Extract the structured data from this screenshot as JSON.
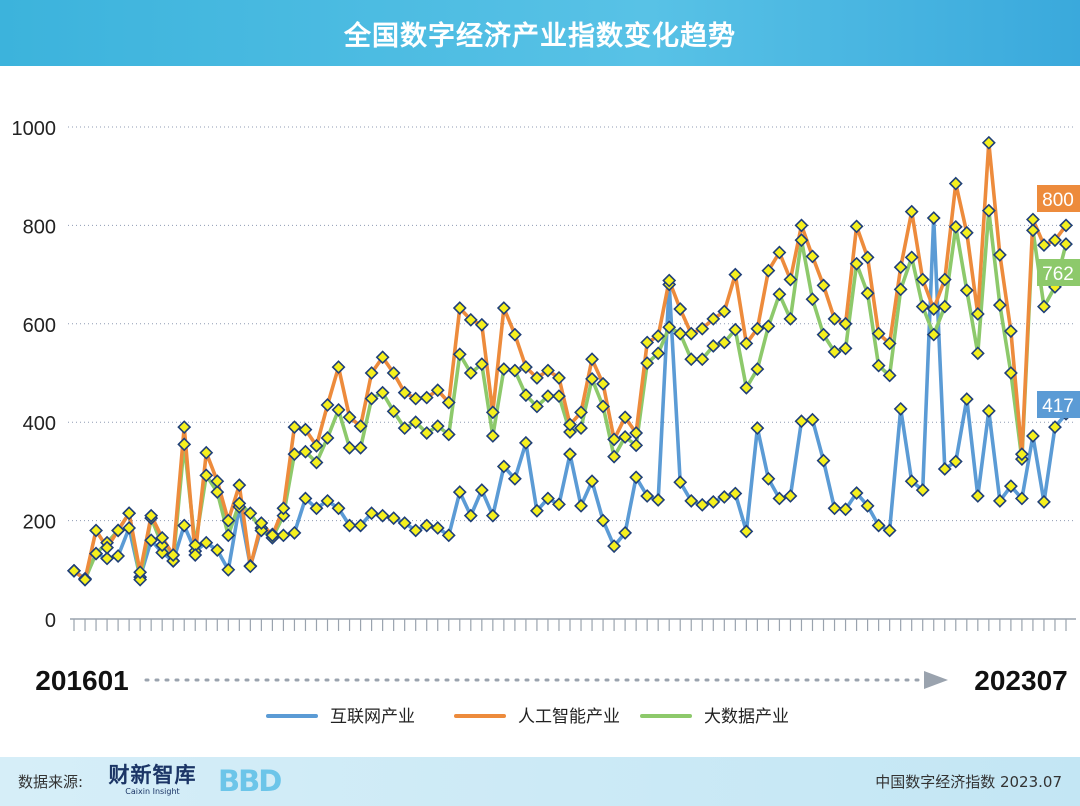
{
  "header": {
    "title": "全国数字经济产业指数变化趋势"
  },
  "footer": {
    "source_label": "数据来源:",
    "logo_main": "财新智库",
    "logo_sub": "Caixin Insight",
    "logo_bbd": "BBD",
    "right_text": "中国数字经济指数 2023.07"
  },
  "colors": {
    "internet": "#5b9bd5",
    "ai": "#ed8b3c",
    "bigdata": "#8dc96b",
    "marker_fill": "#f5f01e",
    "marker_stroke": "#1f3f78",
    "banner": "#3cb3dc"
  },
  "chart_data": {
    "type": "line",
    "title": "全国数字经济产业指数变化趋势",
    "x_start_label": "201601",
    "x_end_label": "202307",
    "ylim": [
      0,
      1000
    ],
    "yticks": [
      "0",
      "200",
      "400",
      "600",
      "800",
      "1000"
    ],
    "grid": true,
    "legend_placement": "bottom-center",
    "end_labels": [
      {
        "series": "人工智能产业",
        "text": "800"
      },
      {
        "series": "大数据产业",
        "text": "762"
      },
      {
        "series": "互联网产业",
        "text": "417"
      }
    ],
    "series": [
      {
        "name": "互联网产业",
        "values": [
          98,
          82,
          133,
          123,
          128,
          185,
          85,
          160,
          135,
          118,
          190,
          138,
          155,
          140,
          100,
          228,
          108,
          185,
          172,
          170,
          175,
          245,
          225,
          240,
          225,
          190,
          190,
          215,
          210,
          205,
          195,
          180,
          190,
          185,
          170,
          258,
          210,
          262,
          210,
          310,
          285,
          358,
          220,
          245,
          233,
          335,
          230,
          280,
          200,
          148,
          175,
          288,
          250,
          242,
          680,
          278,
          240,
          232,
          238,
          248,
          255,
          178,
          388,
          285,
          245,
          250,
          402,
          405,
          322,
          225,
          223,
          256,
          230,
          190,
          180,
          427,
          280,
          262,
          815,
          305,
          320,
          447,
          250,
          423,
          240,
          270,
          245,
          372,
          238,
          390,
          417
        ]
      },
      {
        "name": "人工智能产业",
        "values": [
          98,
          80,
          180,
          145,
          180,
          215,
          95,
          210,
          165,
          130,
          390,
          130,
          338,
          280,
          200,
          272,
          107,
          195,
          170,
          225,
          390,
          385,
          352,
          435,
          512,
          410,
          392,
          500,
          532,
          500,
          460,
          448,
          450,
          465,
          440,
          632,
          608,
          598,
          420,
          632,
          578,
          512,
          490,
          505,
          490,
          395,
          420,
          528,
          478,
          365,
          410,
          378,
          562,
          575,
          688,
          630,
          580,
          590,
          610,
          625,
          700,
          560,
          590,
          708,
          745,
          690,
          800,
          737,
          678,
          610,
          600,
          798,
          735,
          580,
          560,
          715,
          828,
          690,
          630,
          690,
          885,
          785,
          620,
          968,
          740,
          585,
          335,
          812,
          760,
          770,
          800
        ]
      },
      {
        "name": "大数据产业",
        "values": [
          98,
          80,
          133,
          155,
          180,
          215,
          80,
          205,
          150,
          118,
          355,
          150,
          292,
          258,
          170,
          235,
          215,
          180,
          165,
          210,
          335,
          340,
          318,
          368,
          425,
          348,
          348,
          448,
          460,
          422,
          388,
          400,
          378,
          392,
          375,
          538,
          500,
          518,
          372,
          508,
          505,
          455,
          432,
          453,
          453,
          380,
          388,
          488,
          432,
          330,
          370,
          353,
          520,
          540,
          593,
          580,
          528,
          528,
          555,
          562,
          588,
          470,
          508,
          595,
          660,
          610,
          770,
          650,
          578,
          543,
          550,
          722,
          662,
          515,
          495,
          670,
          735,
          635,
          578,
          635,
          797,
          668,
          540,
          830,
          638,
          500,
          325,
          790,
          635,
          675,
          762
        ]
      }
    ]
  }
}
